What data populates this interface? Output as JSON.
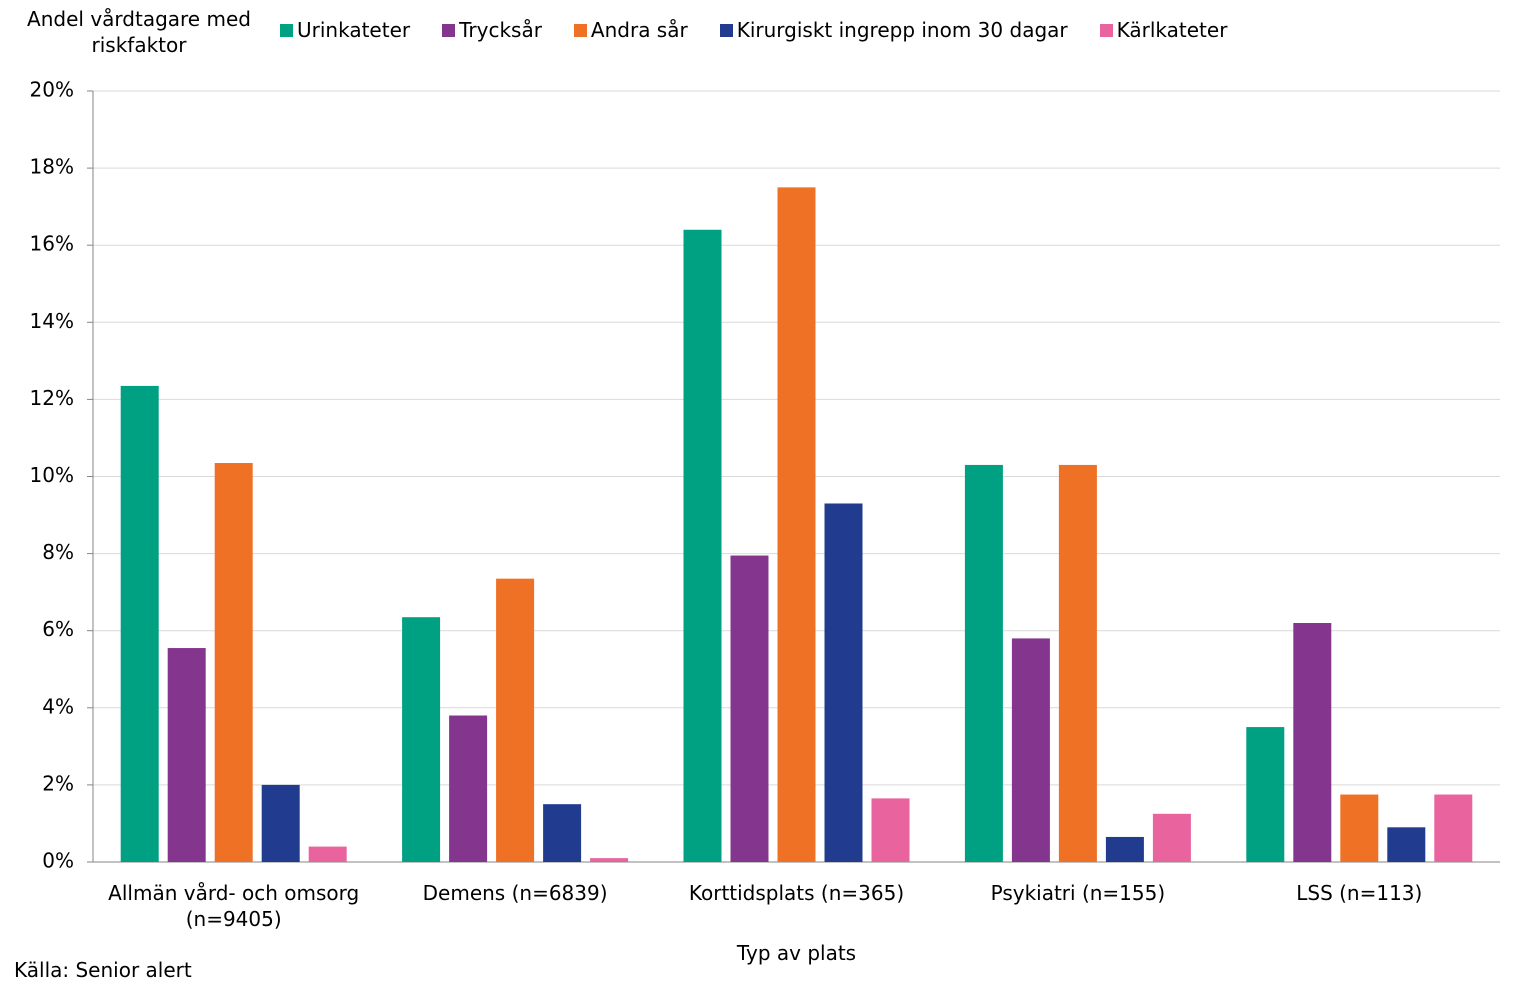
{
  "chart_data": {
    "type": "bar",
    "y_axis_title": "Andel vårdtagare med riskfaktor",
    "x_axis_title": "Typ av plats",
    "source": "Källa: Senior alert",
    "categories": [
      "Allmän vård- och omsorg (n=9405)",
      "Demens (n=6839)",
      "Korttidsplats (n=365)",
      "Psykiatri (n=155)",
      "LSS (n=113)"
    ],
    "series": [
      {
        "name": "Urinkateter",
        "color": "#00a082",
        "values": [
          12.35,
          6.35,
          16.4,
          10.3,
          3.5
        ]
      },
      {
        "name": "Trycksår",
        "color": "#84358e",
        "values": [
          5.55,
          3.8,
          7.95,
          5.8,
          6.2
        ]
      },
      {
        "name": "Andra sår",
        "color": "#ef7126",
        "values": [
          10.35,
          7.35,
          17.5,
          10.3,
          1.75
        ]
      },
      {
        "name": "Kirurgiskt ingrepp inom 30 dagar",
        "color": "#213c8f",
        "values": [
          2.0,
          1.5,
          9.3,
          0.65,
          0.9
        ]
      },
      {
        "name": "Kärlkateter",
        "color": "#e9639f",
        "values": [
          0.4,
          0.1,
          1.65,
          1.25,
          1.75
        ]
      }
    ],
    "ylim": [
      0,
      20
    ],
    "yticks": [
      {
        "value": 0,
        "label": "0%"
      },
      {
        "value": 2,
        "label": "2%"
      },
      {
        "value": 4,
        "label": "4%"
      },
      {
        "value": 6,
        "label": "6%"
      },
      {
        "value": 8,
        "label": "8%"
      },
      {
        "value": 10,
        "label": "10%"
      },
      {
        "value": 12,
        "label": "12%"
      },
      {
        "value": 14,
        "label": "14%"
      },
      {
        "value": 16,
        "label": "16%"
      },
      {
        "value": 18,
        "label": "18%"
      },
      {
        "value": 20,
        "label": "20%"
      }
    ],
    "grid": true
  }
}
